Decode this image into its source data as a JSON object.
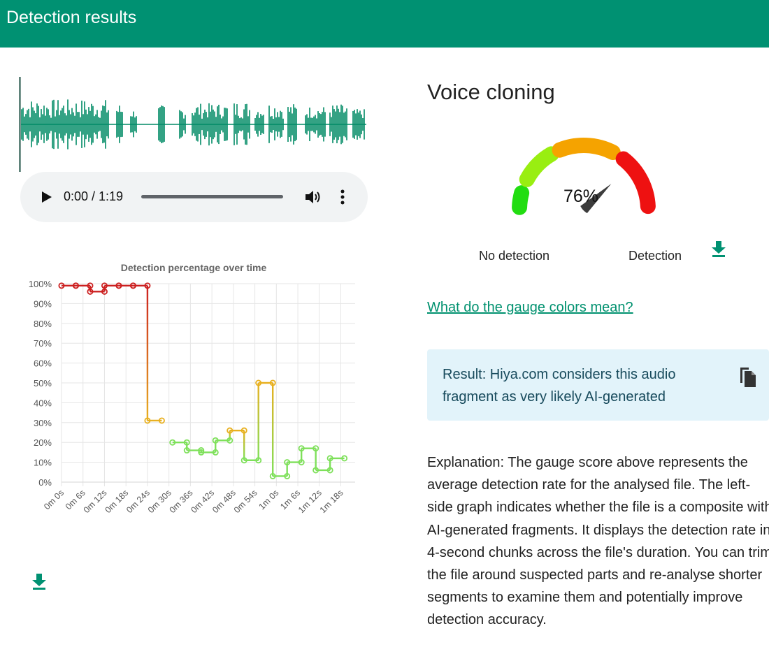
{
  "header": {
    "title": "Detection results"
  },
  "player": {
    "time": "0:00 / 1:19",
    "progress": 0
  },
  "icons": {
    "play": "play-icon",
    "volume": "volume-icon",
    "more": "more-vert-icon",
    "download": "download-icon",
    "copy": "copy-icon"
  },
  "chart_data": {
    "type": "line",
    "title": "Detection percentage over time",
    "xlabel": "",
    "ylabel": "",
    "x_tick_labels": [
      "0m 0s",
      "0m 6s",
      "0m 12s",
      "0m 18s",
      "0m 24s",
      "0m 30s",
      "0m 36s",
      "0m 42s",
      "0m 48s",
      "0m 54s",
      "1m 0s",
      "1m 6s",
      "1m 12s",
      "1m 18s"
    ],
    "y_tick_labels": [
      "0%",
      "10%",
      "20%",
      "30%",
      "40%",
      "50%",
      "60%",
      "70%",
      "80%",
      "90%",
      "100%"
    ],
    "ylim": [
      0,
      100
    ],
    "xlim": [
      0,
      82
    ],
    "grid": true,
    "step": true,
    "colors": {
      "low": "#7ee05a",
      "mid": "#e8b020",
      "high": "#cc2020"
    },
    "series": [
      {
        "segments": [
          {
            "x": [
              0,
              4
            ],
            "y": [
              99,
              99
            ]
          },
          {
            "x": [
              4,
              8
            ],
            "y": [
              99,
              99
            ]
          },
          {
            "x": [
              8,
              12
            ],
            "y": [
              96,
              96
            ]
          },
          {
            "x": [
              12,
              16
            ],
            "y": [
              99,
              99
            ]
          },
          {
            "x": [
              16,
              20
            ],
            "y": [
              99,
              99
            ]
          },
          {
            "x": [
              20,
              24
            ],
            "y": [
              99,
              99
            ]
          },
          {
            "x": [
              24,
              28
            ],
            "y": [
              31,
              31
            ]
          }
        ]
      },
      {
        "segments": [
          {
            "x": [
              31,
              35
            ],
            "y": [
              20,
              20
            ]
          },
          {
            "x": [
              35,
              39
            ],
            "y": [
              16,
              16
            ]
          },
          {
            "x": [
              39,
              43
            ],
            "y": [
              15,
              15
            ]
          },
          {
            "x": [
              43,
              47
            ],
            "y": [
              21,
              21
            ]
          },
          {
            "x": [
              47,
              51
            ],
            "y": [
              26,
              26
            ]
          },
          {
            "x": [
              51,
              55
            ],
            "y": [
              11,
              11
            ]
          },
          {
            "x": [
              55,
              59
            ],
            "y": [
              50,
              50
            ]
          },
          {
            "x": [
              59,
              63
            ],
            "y": [
              3,
              3
            ]
          },
          {
            "x": [
              63,
              67
            ],
            "y": [
              10,
              10
            ]
          },
          {
            "x": [
              67,
              71
            ],
            "y": [
              17,
              17
            ]
          },
          {
            "x": [
              71,
              75
            ],
            "y": [
              6,
              6
            ]
          },
          {
            "x": [
              75,
              79
            ],
            "y": [
              12,
              12
            ]
          }
        ]
      }
    ]
  },
  "detection": {
    "title": "Voice cloning",
    "gauge": {
      "value": 76,
      "value_label": "76%",
      "left_label": "No detection",
      "right_label": "Detection",
      "colors": [
        "#22dd11",
        "#99ee11",
        "#f5a300",
        "#ee1111"
      ]
    },
    "gauge_link": "What do the gauge colors mean?",
    "result_text": "Result: Hiya.com considers this audio fragment as very likely AI-generated",
    "explanation": "Explanation: The gauge score above represents the average detection rate for the analysed file. The left-side graph indicates whether the file is a composite with AI-generated fragments. It displays the detection rate in 4-second chunks across the file's duration. You can trim the file around suspected parts and re-analyse shorter segments to examine them and potentially improve detection accuracy."
  },
  "colors": {
    "brand": "#009172",
    "waveform": "#008a66",
    "link": "#00916f",
    "result_bg": "#e2f3fa",
    "result_text": "#174a5c"
  }
}
